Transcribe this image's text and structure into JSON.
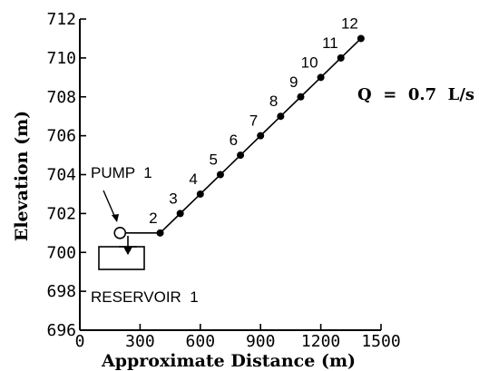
{
  "chart_data": {
    "type": "line",
    "xlabel": "Approximate Distance (m)",
    "ylabel": "Elevation (m)",
    "xlim": [
      0,
      1500
    ],
    "ylim": [
      696,
      712
    ],
    "x_ticks": [
      "0",
      "300",
      "600",
      "900",
      "1200",
      "1500"
    ],
    "y_ticks": [
      "696",
      "698",
      "700",
      "702",
      "704",
      "706",
      "708",
      "710",
      "712"
    ],
    "series": [
      {
        "points": [
          {
            "label": "",
            "x": 200,
            "y": 701,
            "marker": "circle-open"
          },
          {
            "label": "2",
            "x": 400,
            "y": 701,
            "marker": "dot"
          },
          {
            "label": "3",
            "x": 500,
            "y": 702,
            "marker": "dot"
          },
          {
            "label": "4",
            "x": 600,
            "y": 703,
            "marker": "dot"
          },
          {
            "label": "5",
            "x": 700,
            "y": 704,
            "marker": "dot"
          },
          {
            "label": "6",
            "x": 800,
            "y": 705,
            "marker": "dot"
          },
          {
            "label": "7",
            "x": 900,
            "y": 706,
            "marker": "dot"
          },
          {
            "label": "8",
            "x": 1000,
            "y": 707,
            "marker": "dot"
          },
          {
            "label": "9",
            "x": 1100,
            "y": 708,
            "marker": "dot"
          },
          {
            "label": "10",
            "x": 1200,
            "y": 709,
            "marker": "dot"
          },
          {
            "label": "11",
            "x": 1300,
            "y": 710,
            "marker": "dot"
          },
          {
            "label": "12",
            "x": 1400,
            "y": 711,
            "marker": "dot"
          }
        ]
      }
    ],
    "annotations": {
      "pump": "PUMP  1",
      "reservoir": "RESERVOIR  1",
      "flow": "Q  =  0.7  L/s"
    }
  }
}
